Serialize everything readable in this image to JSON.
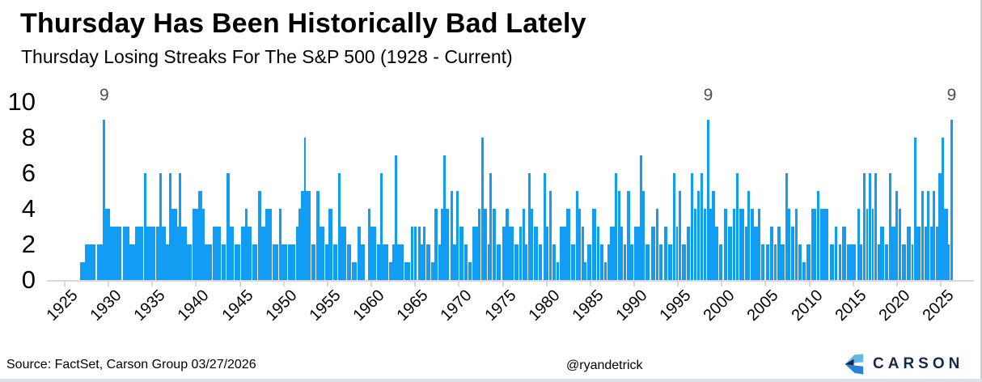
{
  "colors": {
    "bar": "#119df4",
    "axis": "#d8d8d8",
    "annotation": "#4f4f4f",
    "text": "#000000",
    "logo_navy": "#15294d",
    "logo_light": "#66b6e8",
    "logo_mid": "#2a82d4",
    "bottom_strip": "#dbe2ea"
  },
  "footer": {
    "source": "Source: FactSet, Carson Group 03/27/2026",
    "handle": "@ryandetrick",
    "logo_text": "CARSON"
  },
  "chart_data": {
    "type": "bar",
    "title": "Thursday Has Been Historically Bad Lately",
    "subtitle": "Thursday Losing Streaks For The S&P 500 (1928 - Current)",
    "xlabel": "",
    "ylabel": "",
    "xlim": [
      1923,
      2029
    ],
    "ylim": [
      0,
      10
    ],
    "grid": false,
    "legend": false,
    "x_ticks": [
      1925,
      1930,
      1935,
      1940,
      1945,
      1950,
      1955,
      1960,
      1965,
      1970,
      1975,
      1980,
      1985,
      1990,
      1995,
      2000,
      2005,
      2010,
      2015,
      2020,
      2025
    ],
    "y_ticks": [
      0,
      2,
      4,
      6,
      8,
      10
    ],
    "annotations": [
      {
        "x": 1929.6,
        "label": "9"
      },
      {
        "x": 1998.55,
        "label": "9"
      },
      {
        "x": 2026.34,
        "label": "9"
      }
    ],
    "bar_format": "[start_year, width_in_years, losing_streak_length]",
    "bars": [
      [
        1926.8,
        0.6,
        1
      ],
      [
        1927.4,
        1.2,
        2
      ],
      [
        1928.75,
        0.65,
        2
      ],
      [
        1929.45,
        0.3,
        9
      ],
      [
        1929.75,
        0.5,
        4
      ],
      [
        1930.3,
        1.3,
        3
      ],
      [
        1931.75,
        0.75,
        3
      ],
      [
        1932.5,
        0.6,
        2
      ],
      [
        1933.1,
        1.0,
        3
      ],
      [
        1934.1,
        0.3,
        6
      ],
      [
        1934.4,
        1.0,
        3
      ],
      [
        1935.5,
        0.4,
        3
      ],
      [
        1935.9,
        0.3,
        6
      ],
      [
        1936.2,
        0.4,
        3
      ],
      [
        1936.6,
        0.4,
        2
      ],
      [
        1937.0,
        0.3,
        6
      ],
      [
        1937.3,
        0.6,
        4
      ],
      [
        1937.9,
        0.2,
        3
      ],
      [
        1938.1,
        0.3,
        6
      ],
      [
        1938.4,
        0.6,
        3
      ],
      [
        1939.05,
        0.55,
        2
      ],
      [
        1939.7,
        0.6,
        4
      ],
      [
        1940.3,
        0.5,
        5
      ],
      [
        1940.8,
        0.3,
        4
      ],
      [
        1941.1,
        0.8,
        2
      ],
      [
        1942.0,
        0.9,
        3
      ],
      [
        1943.0,
        0.5,
        2
      ],
      [
        1943.6,
        0.3,
        6
      ],
      [
        1943.9,
        0.5,
        3
      ],
      [
        1944.5,
        0.6,
        2
      ],
      [
        1945.2,
        0.5,
        3
      ],
      [
        1945.7,
        0.25,
        4
      ],
      [
        1945.95,
        0.5,
        3
      ],
      [
        1946.5,
        0.6,
        2
      ],
      [
        1947.15,
        0.35,
        5
      ],
      [
        1947.5,
        0.5,
        3
      ],
      [
        1948.0,
        0.7,
        4
      ],
      [
        1948.8,
        0.7,
        2
      ],
      [
        1949.55,
        0.25,
        4
      ],
      [
        1949.8,
        0.7,
        2
      ],
      [
        1950.6,
        0.85,
        2
      ],
      [
        1951.5,
        0.3,
        3
      ],
      [
        1951.8,
        0.25,
        4
      ],
      [
        1952.05,
        0.35,
        5
      ],
      [
        1952.4,
        0.25,
        8
      ],
      [
        1952.65,
        0.5,
        5
      ],
      [
        1953.25,
        0.5,
        2
      ],
      [
        1953.85,
        0.35,
        5
      ],
      [
        1954.2,
        0.5,
        3
      ],
      [
        1954.8,
        0.4,
        2
      ],
      [
        1955.2,
        0.45,
        4
      ],
      [
        1955.7,
        0.5,
        2
      ],
      [
        1956.3,
        0.3,
        6
      ],
      [
        1956.6,
        0.6,
        3
      ],
      [
        1957.3,
        0.5,
        2
      ],
      [
        1957.9,
        0.5,
        1
      ],
      [
        1958.5,
        0.4,
        3
      ],
      [
        1958.9,
        0.5,
        2
      ],
      [
        1959.7,
        0.3,
        4
      ],
      [
        1960.0,
        0.6,
        3
      ],
      [
        1960.7,
        0.4,
        2
      ],
      [
        1961.1,
        0.3,
        6
      ],
      [
        1961.4,
        0.6,
        2
      ],
      [
        1962.1,
        0.4,
        1
      ],
      [
        1962.5,
        0.25,
        2
      ],
      [
        1962.75,
        0.3,
        7
      ],
      [
        1963.05,
        0.7,
        2
      ],
      [
        1963.9,
        0.6,
        1
      ],
      [
        1964.6,
        0.3,
        3
      ],
      [
        1964.95,
        0.3,
        3
      ],
      [
        1965.4,
        0.3,
        3
      ],
      [
        1965.75,
        0.25,
        2
      ],
      [
        1966.0,
        0.3,
        3
      ],
      [
        1966.4,
        0.4,
        2
      ],
      [
        1966.9,
        0.35,
        1
      ],
      [
        1967.3,
        0.4,
        4
      ],
      [
        1967.75,
        0.25,
        2
      ],
      [
        1968.05,
        0.25,
        4
      ],
      [
        1968.3,
        0.3,
        7
      ],
      [
        1968.6,
        0.4,
        4
      ],
      [
        1969.1,
        0.3,
        5
      ],
      [
        1969.45,
        0.3,
        2
      ],
      [
        1969.8,
        0.3,
        5
      ],
      [
        1970.15,
        0.5,
        3
      ],
      [
        1970.7,
        0.4,
        2
      ],
      [
        1971.2,
        0.35,
        1
      ],
      [
        1971.6,
        0.7,
        3
      ],
      [
        1972.3,
        0.3,
        4
      ],
      [
        1972.6,
        0.3,
        8
      ],
      [
        1972.95,
        0.35,
        4
      ],
      [
        1973.35,
        0.25,
        2
      ],
      [
        1973.6,
        0.3,
        6
      ],
      [
        1973.9,
        0.4,
        4
      ],
      [
        1974.4,
        0.5,
        2
      ],
      [
        1975.0,
        0.4,
        3
      ],
      [
        1975.45,
        0.3,
        4
      ],
      [
        1975.8,
        0.5,
        3
      ],
      [
        1976.4,
        0.5,
        2
      ],
      [
        1977.0,
        0.3,
        3
      ],
      [
        1977.35,
        0.25,
        4
      ],
      [
        1977.65,
        0.3,
        2
      ],
      [
        1978.0,
        0.3,
        6
      ],
      [
        1978.3,
        0.3,
        4
      ],
      [
        1978.65,
        0.5,
        3
      ],
      [
        1979.2,
        0.4,
        2
      ],
      [
        1979.75,
        0.3,
        6
      ],
      [
        1980.05,
        0.3,
        3
      ],
      [
        1980.4,
        0.3,
        5
      ],
      [
        1980.75,
        0.4,
        2
      ],
      [
        1981.2,
        0.3,
        1
      ],
      [
        1981.6,
        0.7,
        3
      ],
      [
        1982.35,
        0.5,
        4
      ],
      [
        1982.9,
        0.45,
        2
      ],
      [
        1983.4,
        0.3,
        5
      ],
      [
        1983.7,
        0.3,
        4
      ],
      [
        1984.05,
        0.3,
        3
      ],
      [
        1984.4,
        0.25,
        1
      ],
      [
        1984.7,
        0.5,
        2
      ],
      [
        1985.3,
        0.5,
        4
      ],
      [
        1985.85,
        0.3,
        3
      ],
      [
        1986.2,
        0.4,
        2
      ],
      [
        1986.7,
        0.3,
        1
      ],
      [
        1987.05,
        0.25,
        2
      ],
      [
        1987.35,
        0.5,
        3
      ],
      [
        1987.9,
        0.3,
        6
      ],
      [
        1988.2,
        0.3,
        5
      ],
      [
        1988.55,
        0.3,
        3
      ],
      [
        1988.9,
        0.3,
        2
      ],
      [
        1989.3,
        0.3,
        5
      ],
      [
        1989.65,
        0.4,
        2
      ],
      [
        1990.1,
        0.6,
        3
      ],
      [
        1990.75,
        0.3,
        7
      ],
      [
        1991.05,
        0.3,
        5
      ],
      [
        1991.4,
        0.5,
        2
      ],
      [
        1992.0,
        0.5,
        3
      ],
      [
        1992.6,
        0.3,
        4
      ],
      [
        1992.95,
        0.4,
        2
      ],
      [
        1993.5,
        0.4,
        3
      ],
      [
        1994.0,
        0.4,
        2
      ],
      [
        1994.5,
        0.3,
        6
      ],
      [
        1994.85,
        0.25,
        3
      ],
      [
        1995.15,
        0.3,
        5
      ],
      [
        1995.5,
        0.5,
        2
      ],
      [
        1996.1,
        0.4,
        3
      ],
      [
        1996.55,
        0.3,
        6
      ],
      [
        1996.9,
        0.3,
        4
      ],
      [
        1997.3,
        0.3,
        5
      ],
      [
        1997.65,
        0.3,
        6
      ],
      [
        1998.0,
        0.35,
        4
      ],
      [
        1998.4,
        0.3,
        9
      ],
      [
        1998.7,
        0.25,
        4
      ],
      [
        1999.0,
        0.3,
        5
      ],
      [
        1999.35,
        0.4,
        3
      ],
      [
        1999.8,
        0.4,
        2
      ],
      [
        2000.3,
        0.45,
        4
      ],
      [
        2000.8,
        0.5,
        3
      ],
      [
        2001.35,
        0.3,
        4
      ],
      [
        2001.7,
        0.3,
        6
      ],
      [
        2002.05,
        0.6,
        4
      ],
      [
        2002.7,
        0.3,
        3
      ],
      [
        2003.05,
        0.3,
        5
      ],
      [
        2003.4,
        0.35,
        4
      ],
      [
        2003.8,
        0.4,
        3
      ],
      [
        2004.25,
        0.3,
        4
      ],
      [
        2004.6,
        0.4,
        2
      ],
      [
        2005.1,
        0.4,
        2
      ],
      [
        2005.6,
        0.4,
        3
      ],
      [
        2006.05,
        0.3,
        2
      ],
      [
        2006.4,
        0.4,
        3
      ],
      [
        2006.85,
        0.4,
        2
      ],
      [
        2007.35,
        0.3,
        6
      ],
      [
        2007.65,
        0.3,
        4
      ],
      [
        2008.0,
        0.4,
        3
      ],
      [
        2008.5,
        0.3,
        4
      ],
      [
        2008.85,
        0.4,
        2
      ],
      [
        2009.3,
        0.4,
        1
      ],
      [
        2009.75,
        0.5,
        2
      ],
      [
        2010.3,
        0.55,
        4
      ],
      [
        2010.95,
        0.3,
        5
      ],
      [
        2011.3,
        1.0,
        4
      ],
      [
        2012.4,
        0.5,
        2
      ],
      [
        2013.0,
        0.3,
        3
      ],
      [
        2013.45,
        0.3,
        2
      ],
      [
        2013.8,
        0.5,
        3
      ],
      [
        2014.4,
        0.6,
        2
      ],
      [
        2015.05,
        0.4,
        2
      ],
      [
        2015.55,
        0.3,
        4
      ],
      [
        2015.9,
        0.25,
        2
      ],
      [
        2016.2,
        0.3,
        6
      ],
      [
        2016.55,
        0.25,
        4
      ],
      [
        2016.85,
        0.3,
        6
      ],
      [
        2017.2,
        0.25,
        4
      ],
      [
        2017.5,
        0.3,
        6
      ],
      [
        2017.85,
        0.3,
        2
      ],
      [
        2018.2,
        0.45,
        3
      ],
      [
        2018.7,
        0.4,
        2
      ],
      [
        2019.15,
        0.3,
        6
      ],
      [
        2019.5,
        0.4,
        3
      ],
      [
        2019.95,
        0.3,
        5
      ],
      [
        2020.3,
        0.3,
        4
      ],
      [
        2020.7,
        0.4,
        2
      ],
      [
        2021.2,
        0.5,
        3
      ],
      [
        2021.75,
        0.22,
        2
      ],
      [
        2022.0,
        0.3,
        8
      ],
      [
        2022.35,
        0.4,
        3
      ],
      [
        2022.85,
        0.3,
        5
      ],
      [
        2023.2,
        0.3,
        3
      ],
      [
        2023.55,
        0.3,
        5
      ],
      [
        2023.9,
        0.25,
        3
      ],
      [
        2024.2,
        0.3,
        5
      ],
      [
        2024.55,
        0.3,
        3
      ],
      [
        2024.85,
        0.3,
        6
      ],
      [
        2025.18,
        0.28,
        8
      ],
      [
        2025.5,
        0.4,
        4
      ],
      [
        2025.95,
        0.2,
        2
      ],
      [
        2026.18,
        0.32,
        9
      ]
    ]
  }
}
